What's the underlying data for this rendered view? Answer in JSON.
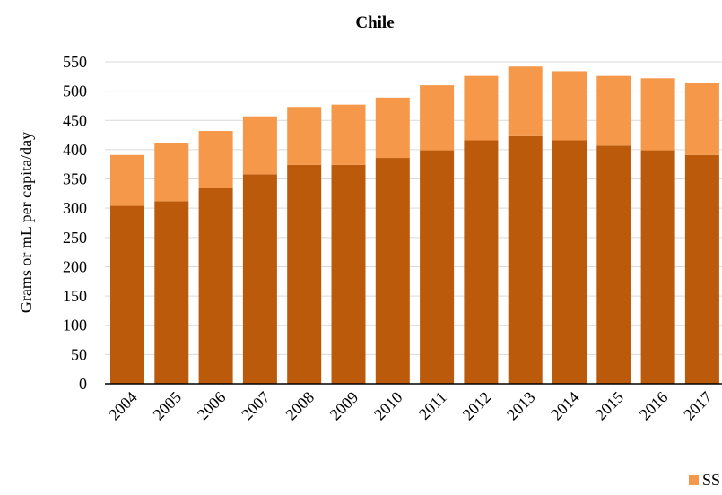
{
  "chart_data": {
    "type": "bar",
    "stacked": true,
    "title": "Chile",
    "xlabel": "",
    "ylabel": "Grams or mL per capita/day",
    "categories": [
      "2004",
      "2005",
      "2006",
      "2007",
      "2008",
      "2009",
      "2010",
      "2011",
      "2012",
      "2013",
      "2014",
      "2015",
      "2016",
      "2017"
    ],
    "series": [
      {
        "values": [
          304,
          312,
          334,
          358,
          374,
          374,
          386,
          399,
          416,
          423,
          416,
          407,
          399,
          391
        ],
        "color": "#bc5a0b"
      },
      {
        "values": [
          87,
          99,
          98,
          99,
          99,
          103,
          103,
          111,
          110,
          119,
          118,
          119,
          123,
          123
        ],
        "color": "#f5984a"
      }
    ],
    "ylim": [
      0,
      550
    ],
    "yticks": [
      0,
      50,
      100,
      150,
      200,
      250,
      300,
      350,
      400,
      450,
      500,
      550
    ],
    "grid": true,
    "legend": {
      "position": "bottom-right",
      "visible_text": "SS",
      "color": "#f5984a"
    }
  }
}
